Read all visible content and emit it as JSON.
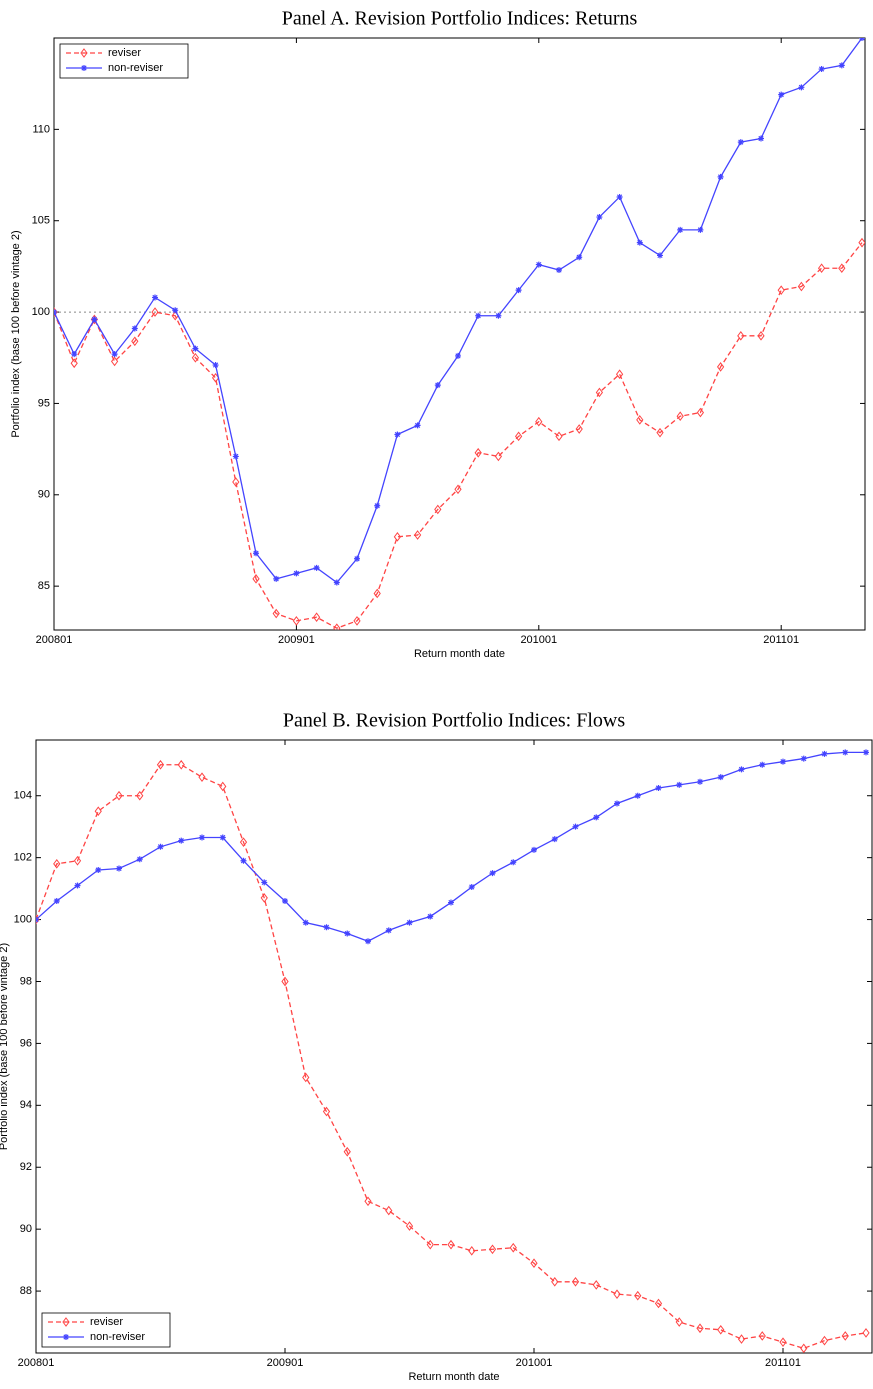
{
  "chart_data": [
    {
      "type": "line",
      "title": "Panel A. Revision Portfolio Indices: Returns",
      "x_label": "Return month date",
      "y_label": "Portfolio index (base 100 before vintage 2)",
      "categories": [
        "200801",
        null,
        null,
        null,
        null,
        null,
        null,
        null,
        null,
        null,
        null,
        null,
        "200901",
        null,
        null,
        null,
        null,
        null,
        null,
        null,
        null,
        null,
        null,
        null,
        "201001",
        null,
        null,
        null,
        null,
        null,
        null,
        null,
        null,
        null,
        null,
        null,
        "201101",
        null,
        null,
        null,
        null
      ],
      "series": [
        {
          "name": "reviser",
          "color": "#ff4444",
          "marker": "diamond",
          "dash": true,
          "values": [
            100,
            97.2,
            99.6,
            97.3,
            98.4,
            100.0,
            99.8,
            97.5,
            96.4,
            90.7,
            85.4,
            83.5,
            83.1,
            83.3,
            82.7,
            83.1,
            84.6,
            87.7,
            87.8,
            89.2,
            90.3,
            92.3,
            92.1,
            93.2,
            94.0,
            93.2,
            93.6,
            95.6,
            96.6,
            94.1,
            93.4,
            94.3,
            94.5,
            97.0,
            98.7,
            98.7,
            101.2,
            101.4,
            102.4,
            102.4,
            103.8
          ]
        },
        {
          "name": "non-reviser",
          "color": "#4444ff",
          "marker": "star",
          "dash": false,
          "values": [
            100,
            97.7,
            99.6,
            97.7,
            99.1,
            100.8,
            100.1,
            98.0,
            97.1,
            92.1,
            86.8,
            85.4,
            85.7,
            86.0,
            85.2,
            86.5,
            89.4,
            93.3,
            93.8,
            96.0,
            97.6,
            99.8,
            99.8,
            101.2,
            102.6,
            102.3,
            103.0,
            105.2,
            106.3,
            103.8,
            103.1,
            104.5,
            104.5,
            107.4,
            109.3,
            109.5,
            111.9,
            112.3,
            113.3,
            113.5,
            115.0
          ]
        }
      ],
      "ylim": [
        82.6,
        115.0
      ],
      "yticks": [
        85,
        90,
        95,
        100,
        105,
        110
      ],
      "reference_line": 100,
      "legend": "upper left"
    },
    {
      "type": "line",
      "title": "Panel B. Revision Portfolio Indices: Flows",
      "x_label": "Return month date",
      "y_label": "Portfolio index (base 100 before vintage 2)",
      "categories": [
        "200801",
        null,
        null,
        null,
        null,
        null,
        null,
        null,
        null,
        null,
        null,
        null,
        "200901",
        null,
        null,
        null,
        null,
        null,
        null,
        null,
        null,
        null,
        null,
        null,
        "201001",
        null,
        null,
        null,
        null,
        null,
        null,
        null,
        null,
        null,
        null,
        null,
        "201101",
        null,
        null,
        null,
        null
      ],
      "series": [
        {
          "name": "reviser",
          "color": "#ff4444",
          "marker": "diamond",
          "dash": true,
          "values": [
            100,
            101.8,
            101.9,
            103.5,
            104.0,
            104.0,
            105.0,
            105.0,
            104.6,
            104.3,
            102.5,
            100.7,
            98.0,
            94.9,
            93.8,
            92.5,
            90.9,
            90.6,
            90.1,
            89.5,
            89.5,
            89.3,
            89.35,
            89.4,
            88.9,
            88.3,
            88.3,
            88.2,
            87.9,
            87.85,
            87.6,
            87.0,
            86.8,
            86.75,
            86.45,
            86.55,
            86.35,
            86.15,
            86.4,
            86.55,
            86.65
          ]
        },
        {
          "name": "non-reviser",
          "color": "#4444ff",
          "marker": "star",
          "dash": false,
          "values": [
            100,
            100.6,
            101.1,
            101.6,
            101.65,
            101.95,
            102.35,
            102.55,
            102.65,
            102.65,
            101.9,
            101.2,
            100.6,
            99.9,
            99.75,
            99.55,
            99.3,
            99.65,
            99.9,
            100.1,
            100.55,
            101.05,
            101.5,
            101.85,
            102.25,
            102.6,
            103.0,
            103.3,
            103.75,
            104.0,
            104.25,
            104.35,
            104.45,
            104.6,
            104.85,
            105.0,
            105.1,
            105.2,
            105.35,
            105.4,
            105.4
          ]
        }
      ],
      "ylim": [
        86.0,
        105.8
      ],
      "yticks": [
        88,
        90,
        92,
        94,
        96,
        98,
        100,
        102,
        104
      ],
      "legend": "lower left"
    }
  ]
}
